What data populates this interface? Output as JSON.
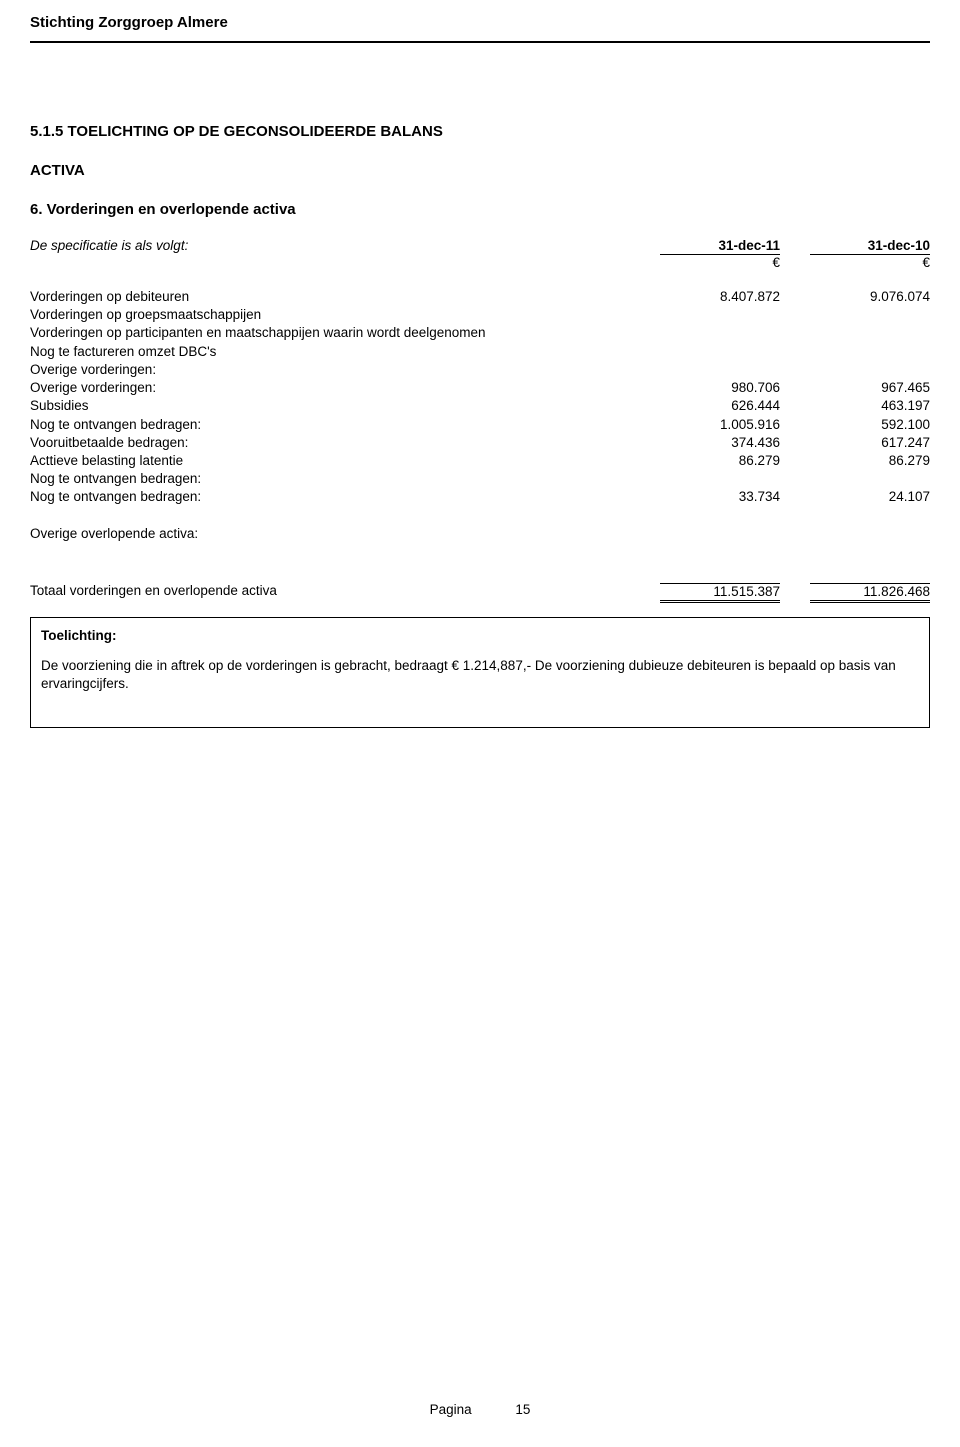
{
  "org": "Stichting Zorggroep Almere",
  "section_title": "5.1.5 TOELICHTING OP DE GECONSOLIDEERDE BALANS",
  "activa": "ACTIVA",
  "subhead": "6. Vorderingen en overlopende activa",
  "spec_label": "De specificatie is als volgt:",
  "col1": "31-dec-11",
  "col2": "31-dec-10",
  "euro": "€",
  "rows": [
    {
      "label": "Vorderingen op debiteuren",
      "v1": "8.407.872",
      "v2": "9.076.074"
    },
    {
      "label": "Vorderingen op groepsmaatschappijen",
      "v1": "",
      "v2": ""
    },
    {
      "label": "Vorderingen op participanten en maatschappijen waarin wordt deelgenomen",
      "v1": "",
      "v2": ""
    },
    {
      "label": "Nog te factureren omzet DBC's",
      "v1": "",
      "v2": ""
    },
    {
      "label": "Overige vorderingen:",
      "v1": "",
      "v2": ""
    },
    {
      "label": "Overige vorderingen:",
      "v1": "980.706",
      "v2": "967.465"
    },
    {
      "label": "Subsidies",
      "v1": "626.444",
      "v2": "463.197"
    },
    {
      "label": "Nog te ontvangen bedragen:",
      "v1": "1.005.916",
      "v2": "592.100"
    },
    {
      "label": "Vooruitbetaalde bedragen:",
      "v1": "374.436",
      "v2": "617.247"
    },
    {
      "label": "Acttieve belasting latentie",
      "v1": "86.279",
      "v2": "86.279"
    },
    {
      "label": "Nog te ontvangen bedragen:",
      "v1": "",
      "v2": ""
    },
    {
      "label": "Nog te ontvangen bedragen:",
      "v1": "33.734",
      "v2": "24.107"
    }
  ],
  "overige_label": "Overige overlopende activa:",
  "total_label": "Totaal vorderingen en overlopende activa",
  "total_v1": "11.515.387",
  "total_v2": "11.826.468",
  "box_title": "Toelichting:",
  "box_text": "De voorziening die in aftrek op de vorderingen is gebracht, bedraagt € 1.214,887,- De voorziening dubieuze debiteuren is bepaald op basis van ervaringcijfers.",
  "footer_label": "Pagina",
  "footer_page": "15"
}
